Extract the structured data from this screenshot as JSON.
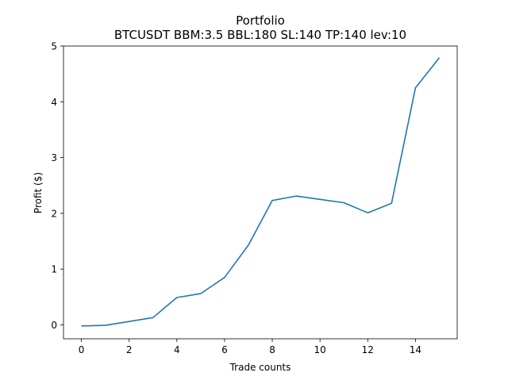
{
  "chart_data": {
    "type": "line",
    "title": "Portfolio",
    "subtitle": "BTCUSDT BBM:3.5 BBL:180 SL:140 TP:140 lev:10",
    "xlabel": "Trade counts",
    "ylabel": "Profit ($)",
    "xlim": [
      -0.75,
      15.75
    ],
    "ylim": [
      -0.25,
      5.0
    ],
    "xticks": [
      0,
      2,
      4,
      6,
      8,
      10,
      12,
      14
    ],
    "yticks": [
      0,
      1,
      2,
      3,
      4,
      5
    ],
    "grid": false,
    "series": [
      {
        "color": "#1f77b4",
        "x": [
          0,
          1,
          2,
          3,
          4,
          5,
          6,
          7,
          8,
          9,
          10,
          11,
          12,
          13,
          14,
          15
        ],
        "y": [
          -0.02,
          -0.01,
          0.06,
          0.13,
          0.49,
          0.56,
          0.85,
          1.43,
          2.23,
          2.31,
          2.25,
          2.19,
          2.01,
          2.18,
          4.25,
          4.79
        ]
      }
    ]
  }
}
